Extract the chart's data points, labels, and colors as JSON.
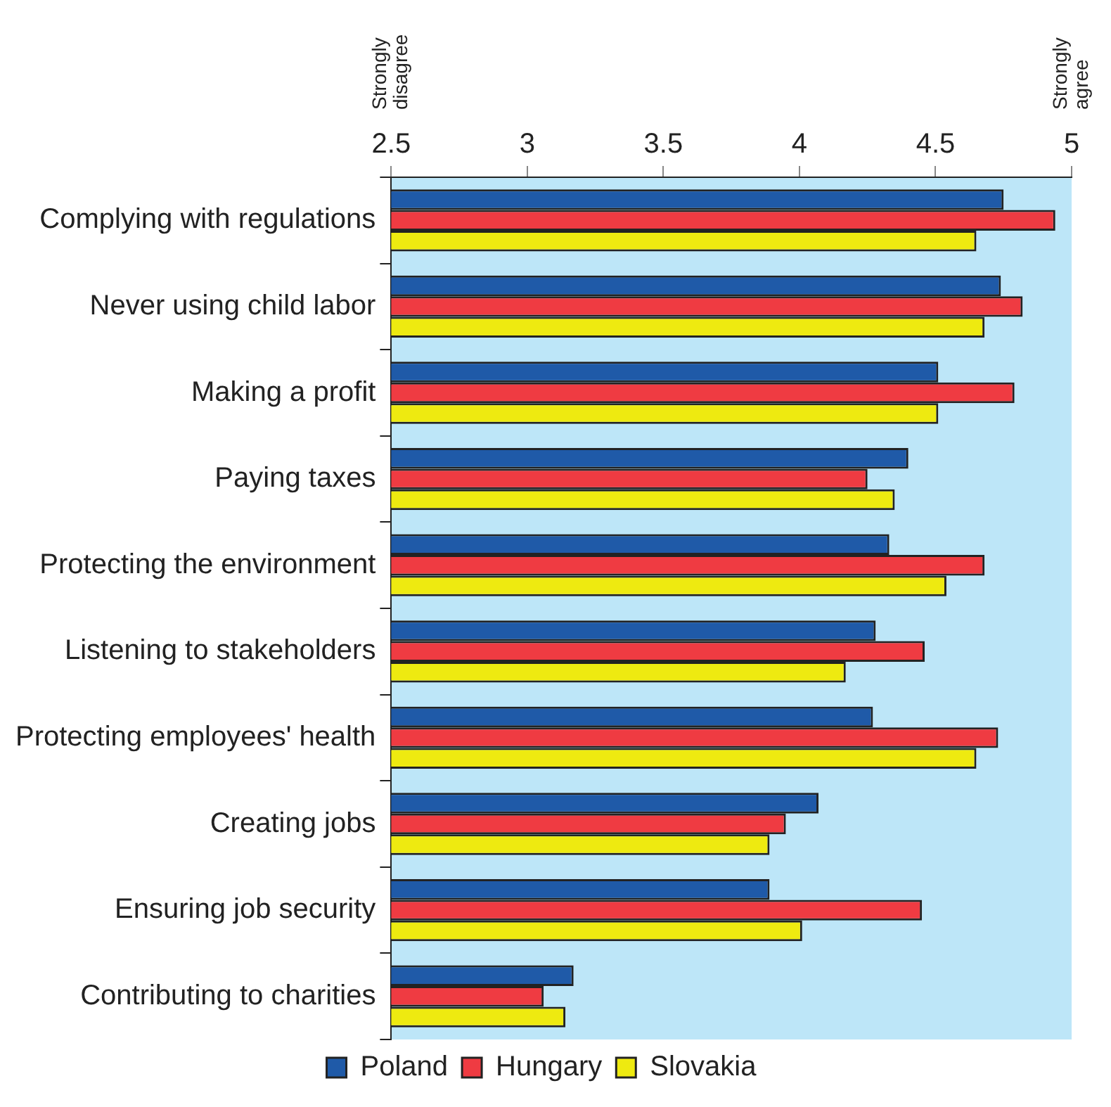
{
  "chart_data": {
    "type": "bar",
    "orientation": "horizontal",
    "categories": [
      "Complying with regulations",
      "Never using child labor",
      "Making a profit",
      "Paying taxes",
      "Protecting the environment",
      "Listening to stakeholders",
      "Protecting employees' health",
      "Creating jobs",
      "Ensuring job security",
      "Contributing to charities"
    ],
    "series": [
      {
        "name": "Poland",
        "color": "#1f5aa8",
        "values": [
          4.75,
          4.74,
          4.51,
          4.4,
          4.33,
          4.28,
          4.27,
          4.07,
          3.89,
          3.17
        ]
      },
      {
        "name": "Hungary",
        "color": "#ef3b42",
        "values": [
          4.94,
          4.82,
          4.79,
          4.25,
          4.68,
          4.46,
          4.73,
          3.95,
          4.45,
          3.06
        ]
      },
      {
        "name": "Slovakia",
        "color": "#eeea10",
        "values": [
          4.65,
          4.68,
          4.51,
          4.35,
          4.54,
          4.17,
          4.65,
          3.89,
          4.01,
          3.14
        ]
      }
    ],
    "xlim": [
      2.5,
      5
    ],
    "xticks": [
      2.5,
      3,
      3.5,
      4,
      4.5,
      5
    ],
    "annotations": [
      "Strongly disagree",
      "Strongly agree"
    ],
    "grid": false,
    "legend": "bottom"
  }
}
